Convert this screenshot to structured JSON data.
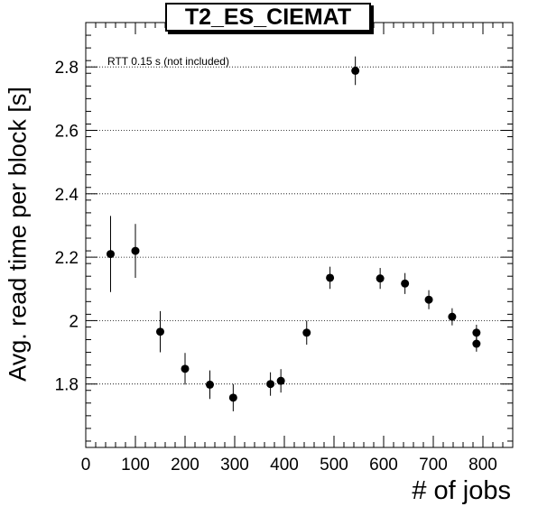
{
  "chart_data": {
    "type": "scatter",
    "title": "T2_ES_CIEMAT",
    "xlabel": "# of jobs",
    "ylabel": "Avg. read time per block [s]",
    "annotation": "RTT 0.15 s (not included)",
    "xlim": [
      0,
      860
    ],
    "ylim": [
      1.6,
      2.94
    ],
    "xticks": [
      0,
      100,
      200,
      300,
      400,
      500,
      600,
      700,
      800
    ],
    "yticks": [
      1.8,
      2.0,
      2.2,
      2.4,
      2.6,
      2.8
    ],
    "ytick_labels": [
      "1.8",
      "2",
      "2.2",
      "2.4",
      "2.6",
      "2.8"
    ],
    "grid": "horizontal dotted",
    "marker_color": "#000000",
    "points": [
      {
        "x": 50,
        "y": 2.21,
        "err": 0.12
      },
      {
        "x": 100,
        "y": 2.22,
        "err": 0.085
      },
      {
        "x": 150,
        "y": 1.965,
        "err": 0.065
      },
      {
        "x": 200,
        "y": 1.848,
        "err": 0.05
      },
      {
        "x": 250,
        "y": 1.798,
        "err": 0.045
      },
      {
        "x": 297,
        "y": 1.757,
        "err": 0.043
      },
      {
        "x": 372,
        "y": 1.8,
        "err": 0.037
      },
      {
        "x": 393,
        "y": 1.81,
        "err": 0.037
      },
      {
        "x": 445,
        "y": 1.962,
        "err": 0.038
      },
      {
        "x": 492,
        "y": 2.135,
        "err": 0.035
      },
      {
        "x": 543,
        "y": 2.788,
        "err": 0.045
      },
      {
        "x": 593,
        "y": 2.133,
        "err": 0.033
      },
      {
        "x": 643,
        "y": 2.117,
        "err": 0.033
      },
      {
        "x": 691,
        "y": 2.066,
        "err": 0.03
      },
      {
        "x": 738,
        "y": 2.012,
        "err": 0.027
      },
      {
        "x": 787,
        "y": 1.962,
        "err": 0.025
      },
      {
        "x": 787,
        "y": 1.927,
        "err": 0.025
      }
    ]
  }
}
